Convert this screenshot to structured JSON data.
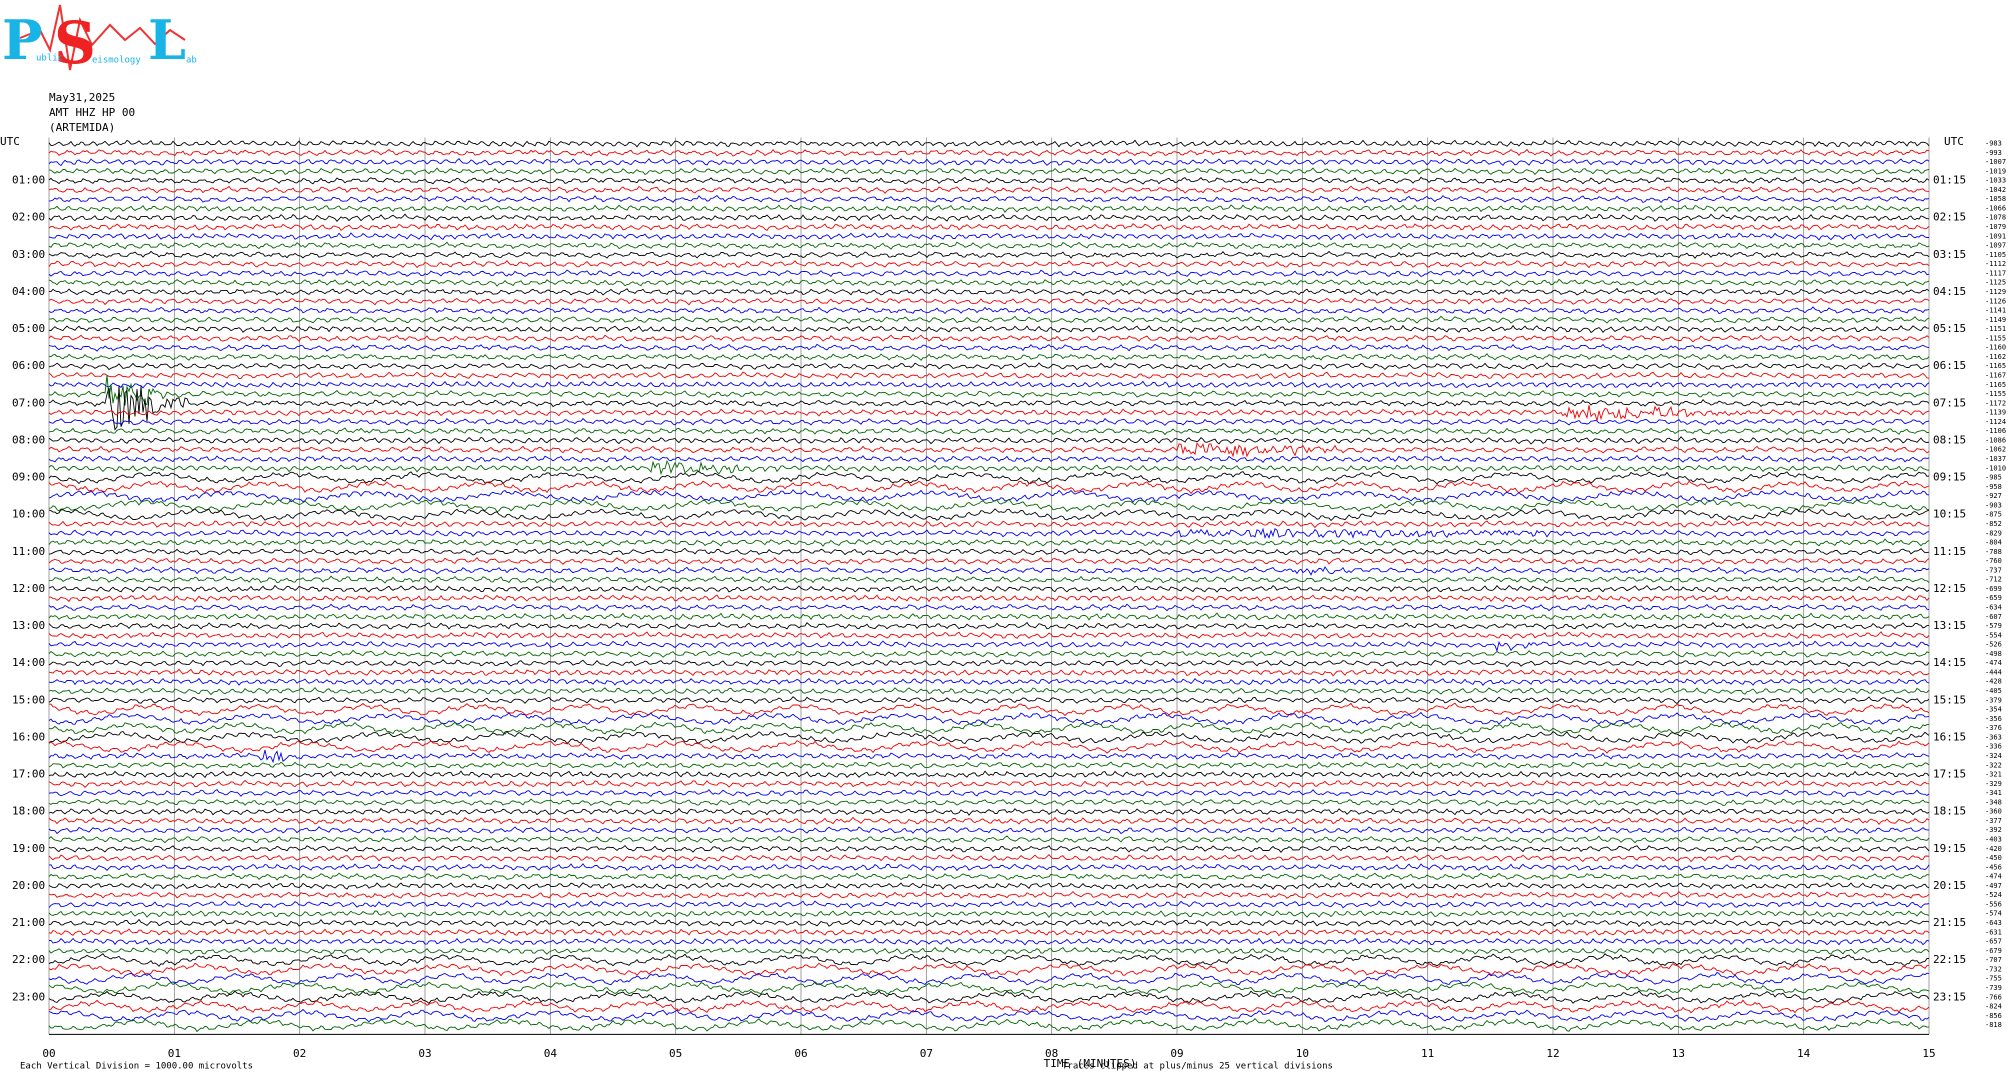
{
  "logo": {
    "letters": [
      "P",
      "S",
      "L"
    ],
    "words": [
      "ublic",
      "eismology",
      "ab"
    ]
  },
  "header": {
    "date": "May31,2025",
    "station": "AMT HHZ HP 00",
    "location": "(ARTEMIDA)"
  },
  "plot": {
    "utc_left": "UTC",
    "utc_right": "UTC",
    "left_labels": [
      "01:00",
      "02:00",
      "03:00",
      "04:00",
      "05:00",
      "06:00",
      "07:00",
      "08:00",
      "09:00",
      "10:00",
      "11:00",
      "12:00",
      "13:00",
      "14:00",
      "15:00",
      "16:00",
      "17:00",
      "18:00",
      "19:00",
      "20:00",
      "21:00",
      "22:00",
      "23:00"
    ],
    "right_labels": [
      "01:15",
      "02:15",
      "03:15",
      "04:15",
      "05:15",
      "06:15",
      "07:15",
      "08:15",
      "09:15",
      "10:15",
      "11:15",
      "12:15",
      "13:15",
      "14:15",
      "15:15",
      "16:15",
      "17:15",
      "18:15",
      "19:15",
      "20:15",
      "21:15",
      "22:15",
      "23:15"
    ],
    "x_labels": [
      "00",
      "01",
      "02",
      "03",
      "04",
      "05",
      "06",
      "07",
      "08",
      "09",
      "10",
      "11",
      "12",
      "13",
      "14",
      "15"
    ],
    "x_title": "TIME (MINUTES)",
    "clip_note": "Traces clipped at plus/minus 25 vertical divisions",
    "scale_note": "Each Vertical Division = 1000.00 microvolts",
    "trace_offsets": [
      "-983",
      "-993",
      "-1007",
      "-1019",
      "-1033",
      "-1042",
      "-1058",
      "-1066",
      "-1078",
      "-1079",
      "-1091",
      "-1097",
      "-1105",
      "-1112",
      "-1117",
      "-1125",
      "-1129",
      "-1126",
      "-1141",
      "-1149",
      "-1151",
      "-1155",
      "-1160",
      "-1162",
      "-1165",
      "-1167",
      "-1165",
      "-1155",
      "-1172",
      "-1139",
      "-1124",
      "-1106",
      "-1086",
      "-1062",
      "-1037",
      "-1010",
      "-985",
      "-958",
      "-927",
      "-903",
      "-875",
      "-852",
      "-829",
      "-804",
      "-788",
      "-760",
      "-737",
      "-712",
      "-699",
      "-659",
      "-634",
      "-607",
      "-579",
      "-554",
      "-526",
      "-498",
      "-474",
      "-444",
      "-428",
      "-405",
      "-379",
      "-354",
      "-356",
      "-376",
      "-363",
      "-336",
      "-324",
      "-322",
      "-321",
      "-329",
      "-341",
      "-348",
      "-360",
      "-377",
      "-392",
      "-403",
      "-420",
      "-450",
      "-456",
      "-474",
      "-497",
      "-524",
      "-556",
      "-574",
      "-643",
      "-631",
      "-657",
      "-679",
      "-707",
      "-732",
      "-755",
      "-739",
      "-766",
      "-824",
      "-856",
      "-818"
    ]
  }
}
